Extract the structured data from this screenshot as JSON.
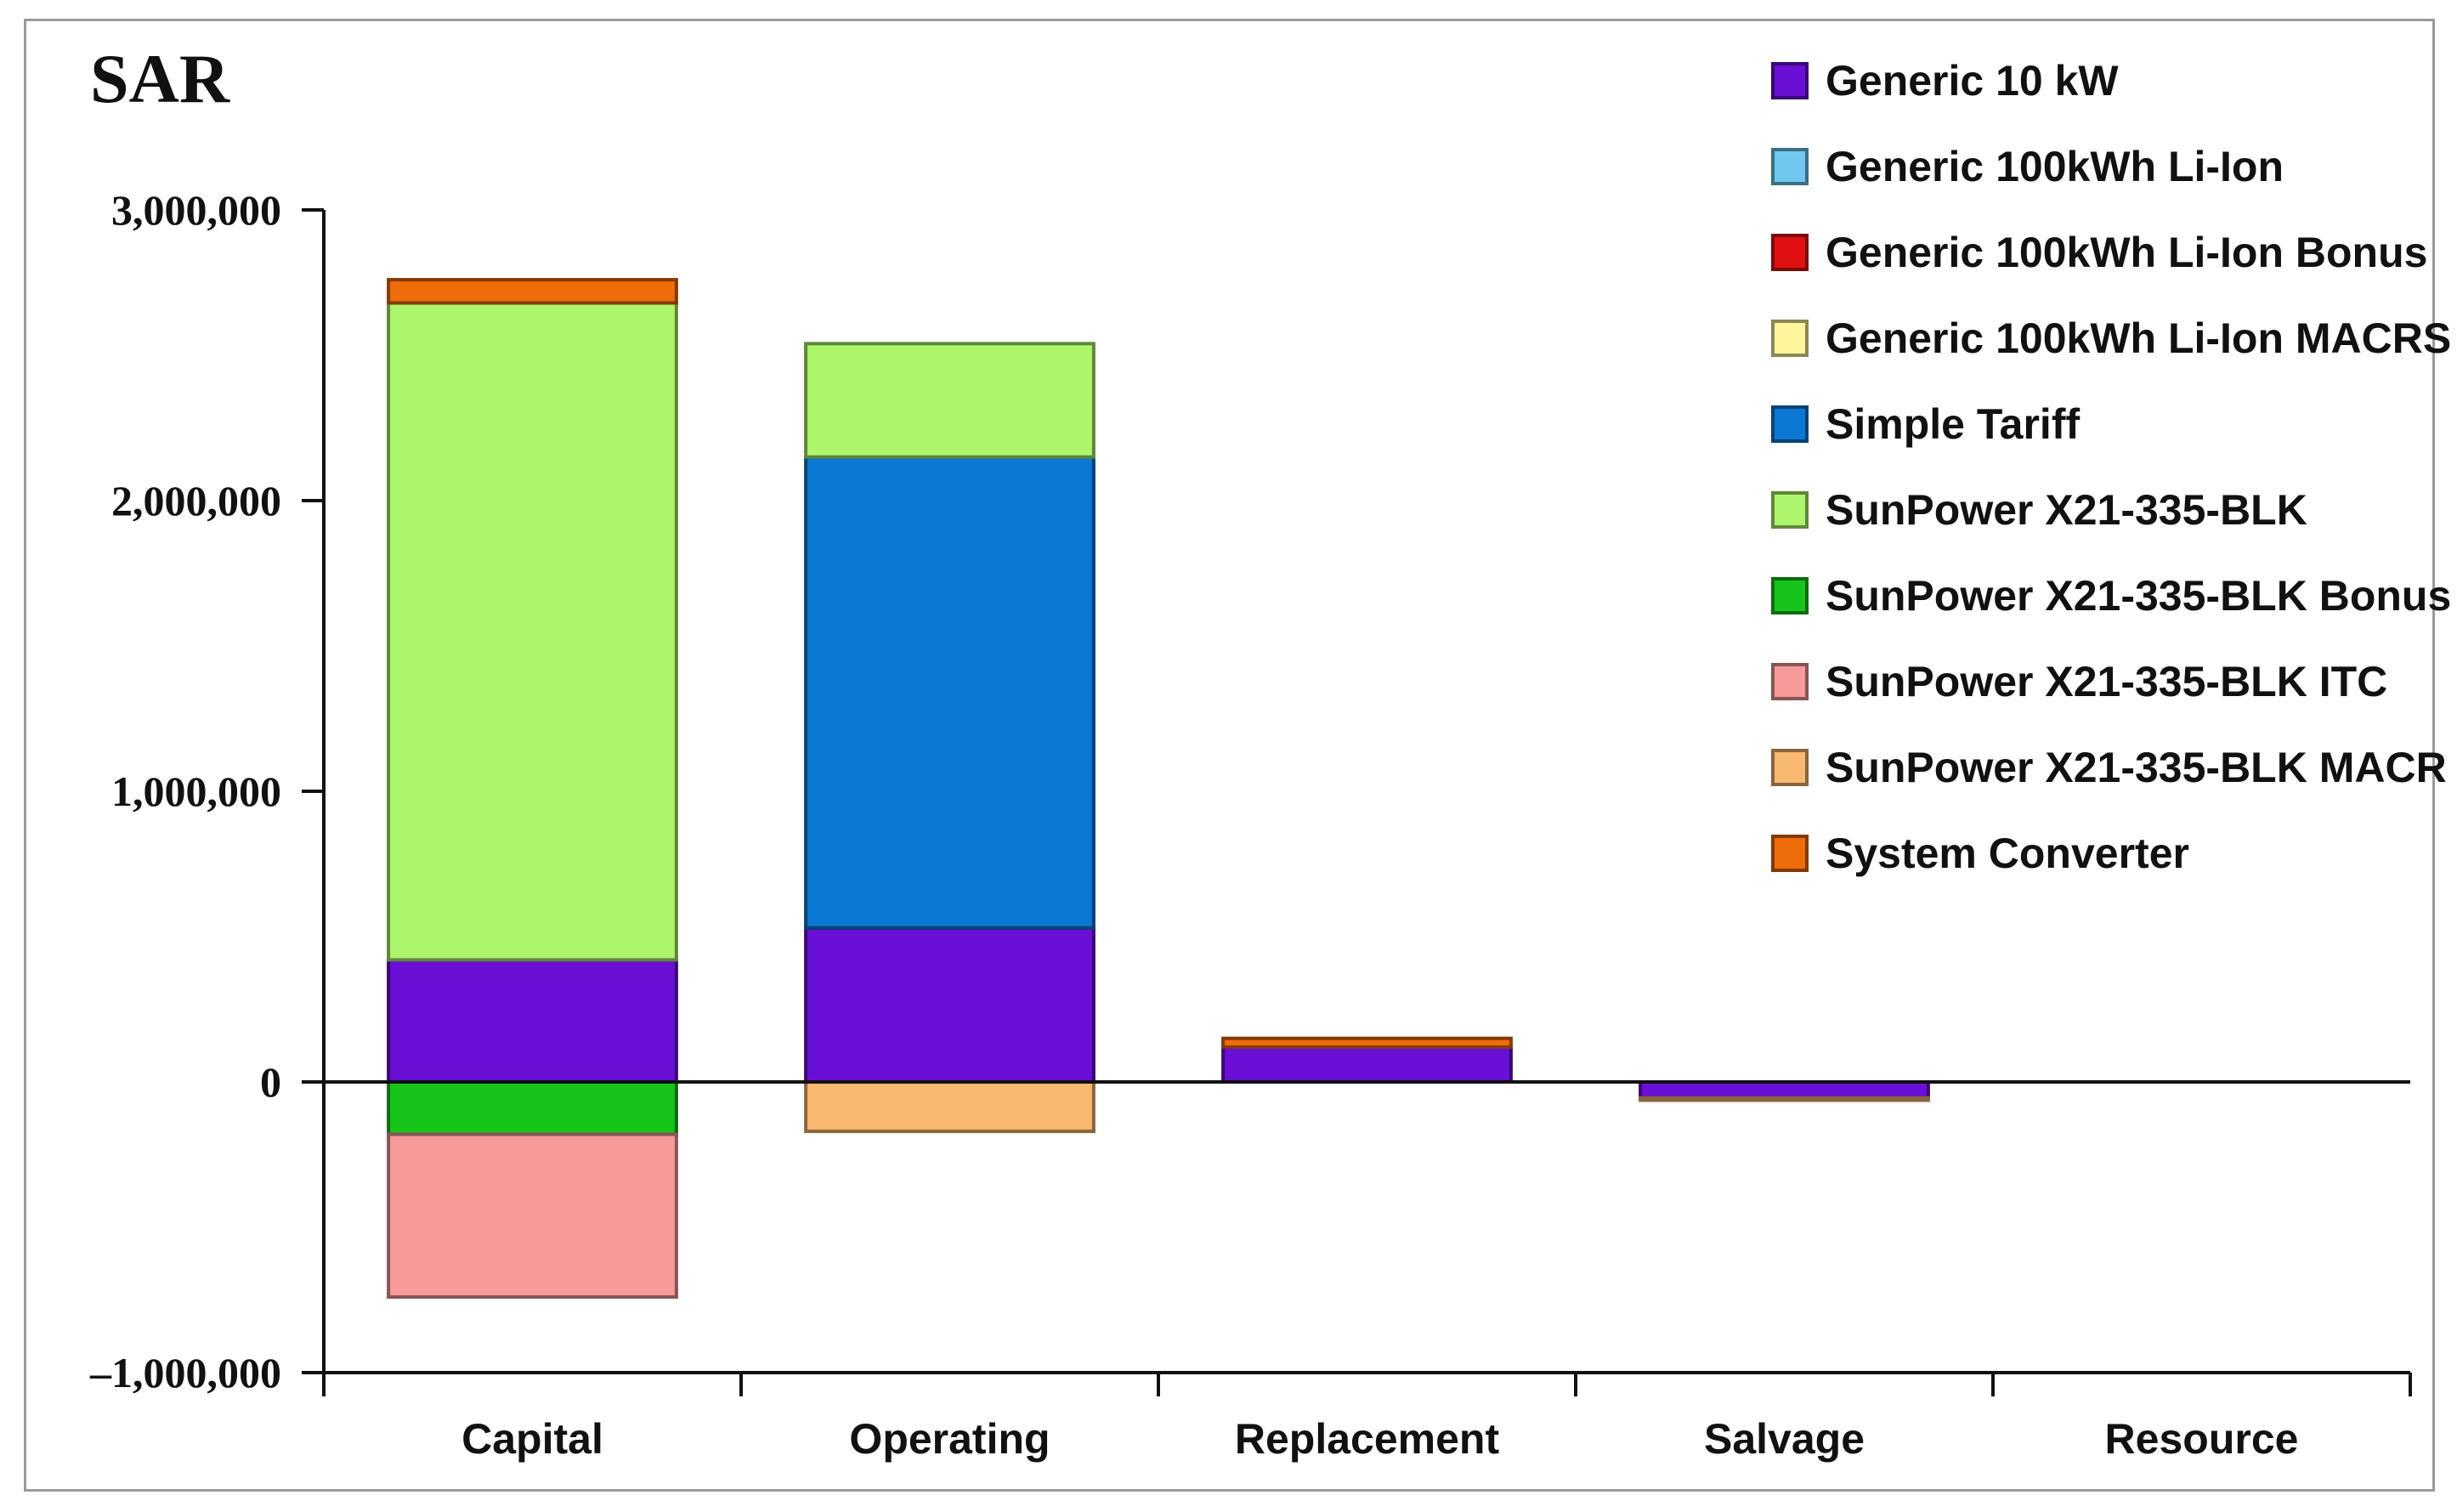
{
  "chart_data": {
    "type": "bar",
    "stacked": true,
    "unit_title": "SAR",
    "title": "",
    "xlabel": "",
    "ylabel": "",
    "ylim": [
      -1000000,
      3000000
    ],
    "yticks": [
      3000000,
      2000000,
      1000000,
      0,
      -1000000
    ],
    "ytick_labels": [
      "3,000,000",
      "2,000,000",
      "1,000,000",
      "0",
      "–1,000,000"
    ],
    "categories": [
      "Capital",
      "Operating",
      "Replacement",
      "Salvage",
      "Resource"
    ],
    "legend_position": "top-right",
    "grid": false,
    "series": [
      {
        "name": "Generic 10 kW",
        "color": "#6a0fd6",
        "values": [
          420000,
          530000,
          120000,
          -55000,
          0
        ]
      },
      {
        "name": "Generic 100kWh Li-Ion",
        "color": "#6fc8f0",
        "values": [
          0,
          0,
          0,
          0,
          0
        ]
      },
      {
        "name": "Generic 100kWh Li-Ion Bonus",
        "color": "#e01010",
        "values": [
          0,
          0,
          0,
          0,
          0
        ]
      },
      {
        "name": "Generic 100kWh Li-Ion MACRS",
        "color": "#fff59a",
        "values": [
          0,
          0,
          0,
          0,
          0
        ]
      },
      {
        "name": "Simple Tariff",
        "color": "#0b78d4",
        "values": [
          0,
          1620000,
          0,
          0,
          0
        ]
      },
      {
        "name": "SunPower X21-335-BLK",
        "color": "#adf56a",
        "values": [
          2260000,
          390000,
          0,
          0,
          0
        ]
      },
      {
        "name": "SunPower X21-335-BLK Bonus",
        "color": "#16c41a",
        "values": [
          -180000,
          0,
          0,
          0,
          0
        ]
      },
      {
        "name": "SunPower X21-335-BLK ITC",
        "color": "#f79a9a",
        "values": [
          -560000,
          0,
          0,
          0,
          0
        ]
      },
      {
        "name": "SunPower X21-335-BLK MACR",
        "color": "#f8b870",
        "values": [
          0,
          -170000,
          0,
          -8000,
          0
        ]
      },
      {
        "name": "System Converter",
        "color": "#ef6c0a",
        "values": [
          80000,
          0,
          30000,
          0,
          0
        ]
      }
    ]
  }
}
